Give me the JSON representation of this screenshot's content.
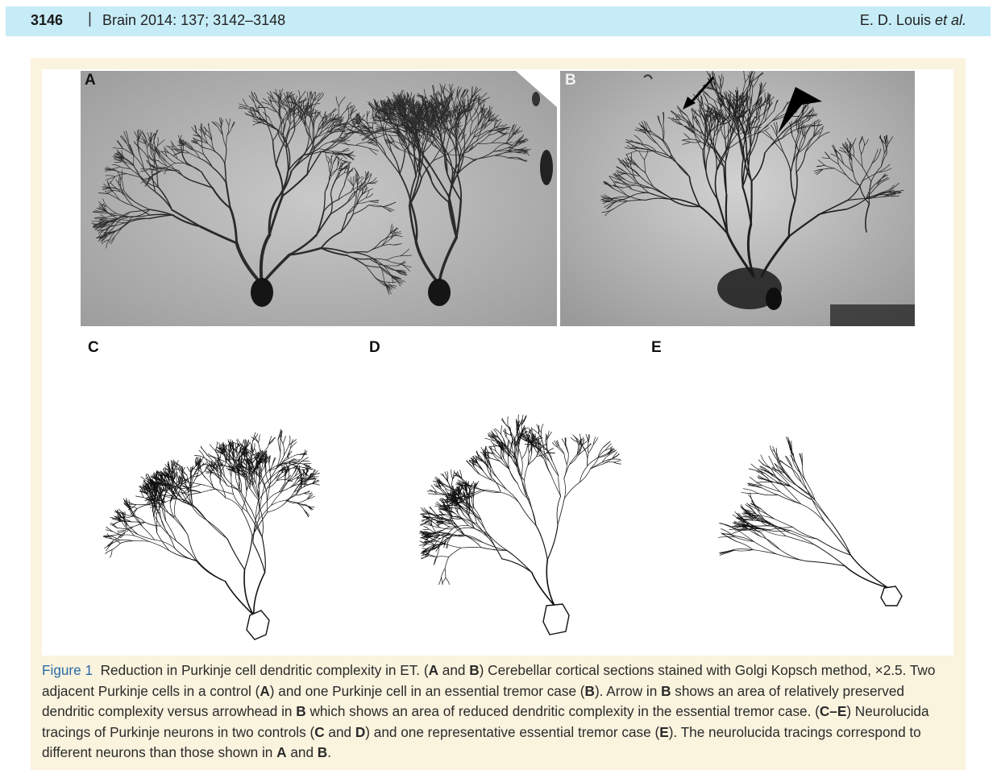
{
  "header": {
    "page_number": "3146",
    "separator": "|",
    "journal": "Brain 2014: 137; 3142–3148",
    "authors_plain": "E. D. Louis ",
    "authors_italic": "et al."
  },
  "figure": {
    "panels": [
      {
        "label": "A"
      },
      {
        "label": "B"
      },
      {
        "label": "C"
      },
      {
        "label": "D"
      },
      {
        "label": "E"
      }
    ],
    "caption": {
      "label": "Figure 1",
      "s1": "Reduction in Purkinje cell dendritic complexity in ET. (",
      "b1": "A",
      "s2": " and ",
      "b2": "B",
      "s3": ") Cerebellar cortical sections stained with Golgi Kopsch method, ×2.5. Two adjacent Purkinje cells in a control (",
      "b3": "A",
      "s4": ") and one Purkinje cell in an essential tremor case (",
      "b4": "B",
      "s5": "). Arrow in ",
      "b5": "B",
      "s6": " shows an area of relatively preserved dendritic complexity versus arrowhead in ",
      "b6": "B",
      "s7": " which shows an area of reduced dendritic complexity in the essential tremor case. (",
      "b7": "C–E",
      "s8": ") Neurolucida tracings of Purkinje neurons in two controls (",
      "b8": "C",
      "s9": " and ",
      "b9": "D",
      "s10": ") and one representative essential tremor case (",
      "b10": "E",
      "s11": "). The neurolucida tracings correspond to different neurons than those shown in ",
      "b11": "A",
      "s12": " and ",
      "b12": "B",
      "s13": "."
    }
  },
  "colors": {
    "header_bg": "#c6ecf7",
    "figure_bg": "#faf3de",
    "figure_label": "#2b6aa6"
  }
}
